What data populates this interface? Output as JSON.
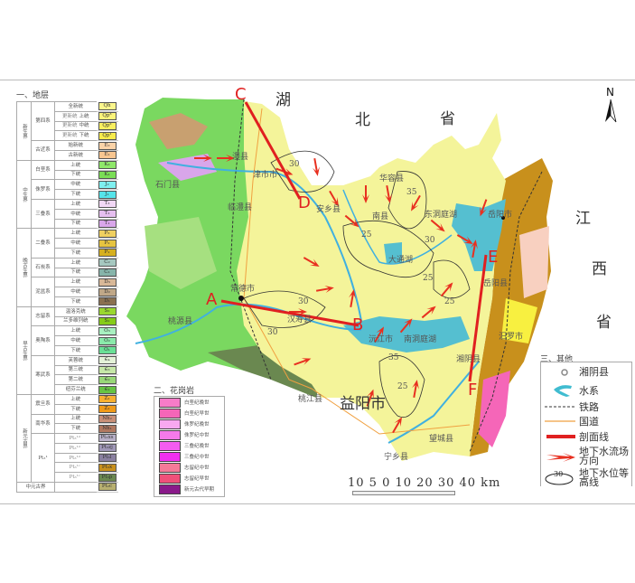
{
  "strata_legend": {
    "title": "一、地层",
    "eras": [
      {
        "name": "新生界",
        "systems": [
          {
            "name": "第四系",
            "series": [
              {
                "name": "全新统",
                "code": "Qh",
                "color": "#fbf68c"
              },
              {
                "group": "更新统",
                "name": "上统",
                "code": "Qp³",
                "color": "#fbf47a"
              },
              {
                "group": "更新统",
                "name": "中统",
                "code": "Qp²",
                "color": "#f9f060"
              },
              {
                "group": "更新统",
                "name": "下统",
                "code": "Qp¹",
                "color": "#f7ec4c"
              }
            ]
          },
          {
            "name": "古近系",
            "series": [
              {
                "name": "始新统",
                "code": "E₂",
                "color": "#fbd3a8"
              },
              {
                "name": "古新统",
                "code": "E₁",
                "color": "#f9c690"
              }
            ]
          }
        ]
      },
      {
        "name": "中生界",
        "systems": [
          {
            "name": "白垩系",
            "series": [
              {
                "name": "上统",
                "code": "K₂",
                "color": "#8fe86a"
              },
              {
                "name": "下统",
                "code": "K₁",
                "color": "#7ade55"
              }
            ]
          },
          {
            "name": "侏罗系",
            "series": [
              {
                "name": "中统",
                "code": "J₂",
                "color": "#7ef0f0"
              },
              {
                "name": "下统",
                "code": "J₁",
                "color": "#55e4ea"
              }
            ]
          },
          {
            "name": "三叠系",
            "series": [
              {
                "name": "上统",
                "code": "T₃",
                "color": "#f2d8f6"
              },
              {
                "name": "中统",
                "code": "T₂",
                "color": "#e6bff0"
              },
              {
                "name": "下统",
                "code": "T₁",
                "color": "#d9a6ea"
              }
            ]
          }
        ]
      },
      {
        "name": "晚古生界",
        "systems": [
          {
            "name": "二叠系",
            "series": [
              {
                "name": "上统",
                "code": "P₃",
                "color": "#f0d060"
              },
              {
                "name": "中统",
                "code": "P₂",
                "color": "#e6c440"
              },
              {
                "name": "下统",
                "code": "P₁",
                "color": "#d6b020"
              }
            ]
          },
          {
            "name": "石炭系",
            "series": [
              {
                "name": "上统",
                "code": "C₂",
                "color": "#a6c8c0"
              },
              {
                "name": "下统",
                "code": "C₁",
                "color": "#86b4aa"
              }
            ]
          },
          {
            "name": "泥盆系",
            "series": [
              {
                "name": "上统",
                "code": "D₃",
                "color": "#d8b898"
              },
              {
                "name": "中统",
                "code": "D₂",
                "color": "#c0a888"
              },
              {
                "name": "下统",
                "code": "D₁",
                "color": "#8a7050"
              }
            ]
          }
        ]
      },
      {
        "name": "早古生界",
        "systems": [
          {
            "name": "志留系",
            "series": [
              {
                "name": "温洛克统",
                "code": "S₂",
                "color": "#9ad830"
              },
              {
                "name": "兰多维列统",
                "code": "S₁",
                "color": "#86cc18"
              }
            ]
          },
          {
            "name": "奥陶系",
            "series": [
              {
                "name": "上统",
                "code": "O₃",
                "color": "#a8f0c0"
              },
              {
                "name": "中统",
                "code": "O₂",
                "color": "#8aeaaa"
              },
              {
                "name": "下统",
                "code": "O₁",
                "color": "#6ae096"
              }
            ]
          },
          {
            "name": "寒武系",
            "series": [
              {
                "name": "芙蓉统",
                "code": "∈₄",
                "color": "#e4f2d8"
              },
              {
                "name": "第三统",
                "code": "∈₃",
                "color": "#c6e8a8"
              },
              {
                "name": "第二统",
                "code": "∈₂",
                "color": "#98d878"
              },
              {
                "name": "纽芬兰统",
                "code": "∈₁",
                "color": "#66c444"
              }
            ]
          }
        ]
      },
      {
        "name": "新元古界",
        "systems": [
          {
            "name": "震旦系",
            "series": [
              {
                "name": "上统",
                "code": "Z₂",
                "color": "#f8b030"
              },
              {
                "name": "下统",
                "code": "Z₁",
                "color": "#f09a18"
              }
            ]
          },
          {
            "name": "南华系",
            "series": [
              {
                "name": "上统",
                "code": "Nh₂",
                "color": "#c89078"
              },
              {
                "name": "下统",
                "code": "Nh₁",
                "color": "#b07860"
              }
            ]
          },
          {
            "name": "Pt₃¹",
            "series": [
              {
                "group": "Pt₃¹ᵈ",
                "name": "",
                "code": "Pt₃xs",
                "color": "#b8b0c8"
              },
              {
                "group": "Pt₃¹ᵈ",
                "name": "",
                "code": "Pt₃zj",
                "color": "#a098b8"
              },
              {
                "group": "Pt₃¹ᵈ",
                "name": "",
                "code": "Pt₃l",
                "color": "#8a80a0"
              },
              {
                "group": "Pt₃¹ᶜ",
                "name": "",
                "code": "Pt₃x",
                "color": "#c8901c"
              },
              {
                "group": "Pt₃¹ᶜ",
                "name": "",
                "code": "Pt₃p",
                "color": "#6a8850"
              }
            ]
          }
        ]
      },
      {
        "name": "中元古界",
        "systems": [
          {
            "name": "",
            "series": [
              {
                "name": "",
                "code": "Pt₂c",
                "color": "#b8b070"
              }
            ]
          }
        ]
      }
    ]
  },
  "granite_legend": {
    "title": "二、花岗岩",
    "items": [
      {
        "label": "白垩纪晚世",
        "color": "#f77cc8"
      },
      {
        "label": "白垩纪早世",
        "color": "#f566b8"
      },
      {
        "label": "侏罗纪晚世",
        "color": "#f8a8f0"
      },
      {
        "label": "侏罗纪中世",
        "color": "#f57aea"
      },
      {
        "label": "三叠纪晚世",
        "color": "#f45cf0"
      },
      {
        "label": "三叠纪中世",
        "color": "#f030f0"
      },
      {
        "label": "志留纪中世",
        "color": "#f47a98"
      },
      {
        "label": "志留纪早世",
        "color": "#f0507a"
      },
      {
        "label": "新元古代早期",
        "color": "#8a1a8a"
      }
    ]
  },
  "other_legend": {
    "title": "三、其他",
    "items": [
      {
        "icon": "county-seat-icon",
        "label": "湘阴县"
      },
      {
        "icon": "water-system-icon",
        "label": "水系"
      },
      {
        "icon": "railway-icon",
        "label": "铁路"
      },
      {
        "icon": "national-road-icon",
        "label": "国道"
      },
      {
        "icon": "section-line-icon",
        "label": "剖面线"
      },
      {
        "icon": "flow-direction-icon",
        "label": "地下水流场方向"
      },
      {
        "icon": "contour-icon",
        "label": "地下水位等高线",
        "contour_value": "30"
      }
    ]
  },
  "map": {
    "north_label": "N",
    "province_labels": [
      "湖",
      "北",
      "省",
      "江",
      "西",
      "省"
    ],
    "section_points": [
      "C",
      "D",
      "A",
      "B",
      "E",
      "F"
    ],
    "places": [
      "澧县",
      "津市市",
      "石门县",
      "临澧县",
      "安乡县",
      "华容县",
      "岳阳市",
      "南县",
      "东洞庭湖",
      "大通湖",
      "常德市",
      "汉寿县",
      "沅江市",
      "南洞庭湖",
      "岳阳县",
      "汨罗市",
      "湘阴县",
      "桃源县",
      "桃江县",
      "益阳市",
      "望城县",
      "宁乡县"
    ],
    "contour_labels": [
      "30",
      "35",
      "25",
      "25",
      "30",
      "25",
      "25",
      "30",
      "35",
      "30"
    ],
    "scale_text": "10 5 0  10  20  30  40 km",
    "colors": {
      "plain": "#f4f49a",
      "lake": "#55bfd0",
      "river": "#40b0e0",
      "section": "#e02020",
      "flow": "#e83020",
      "road": "#f0a040"
    }
  }
}
